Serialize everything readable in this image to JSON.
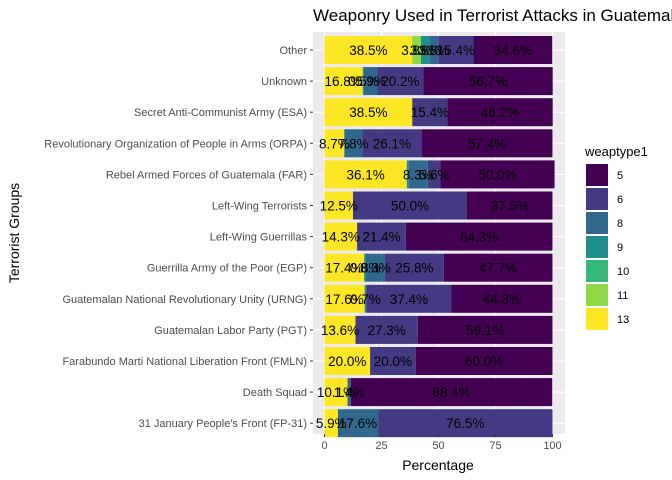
{
  "chart_data": {
    "type": "bar",
    "orientation": "horizontal",
    "stacked": true,
    "title": "Weaponry Used in Terrorist Attacks in Guatemala",
    "xlabel": "Percentage",
    "ylabel": "Terrorist Groups",
    "xlim": [
      0,
      100
    ],
    "xticks": [
      "0",
      "25",
      "50",
      "75",
      "100"
    ],
    "legend": {
      "title": "weaptype1",
      "position": "right",
      "entries": [
        {
          "key": "5",
          "color": "#440154"
        },
        {
          "key": "6",
          "color": "#443A83"
        },
        {
          "key": "8",
          "color": "#31688E"
        },
        {
          "key": "9",
          "color": "#21908C"
        },
        {
          "key": "10",
          "color": "#35B779"
        },
        {
          "key": "11",
          "color": "#8FD744"
        },
        {
          "key": "13",
          "color": "#FDE725"
        }
      ]
    },
    "stack_order": [
      "13",
      "11",
      "10",
      "9",
      "8",
      "6",
      "5"
    ],
    "groups": [
      {
        "name": "Other",
        "segments": [
          {
            "key": "13",
            "value": 38.5,
            "label": "38.5%"
          },
          {
            "key": "11",
            "value": 3.8,
            "label": "3.8%"
          },
          {
            "key": "9",
            "value": 3.8,
            "label": "3.8%"
          },
          {
            "key": "8",
            "value": 3.8,
            "label": "3.8%"
          },
          {
            "key": "6",
            "value": 15.4,
            "label": "15.4%"
          },
          {
            "key": "5",
            "value": 34.6,
            "label": "34.6%"
          }
        ]
      },
      {
        "name": "Unknown",
        "segments": [
          {
            "key": "13",
            "value": 16.8,
            "label": "16.8%"
          },
          {
            "key": "9",
            "value": 0.5,
            "label": "0.5%"
          },
          {
            "key": "8",
            "value": 5.9,
            "label": "5.9%"
          },
          {
            "key": "6",
            "value": 20.2,
            "label": "20.2%"
          },
          {
            "key": "5",
            "value": 56.7,
            "label": "56.7%"
          }
        ]
      },
      {
        "name": "Secret Anti-Communist Army (ESA)",
        "segments": [
          {
            "key": "13",
            "value": 38.5,
            "label": "38.5%"
          },
          {
            "key": "6",
            "value": 15.4,
            "label": "15.4%"
          },
          {
            "key": "5",
            "value": 46.2,
            "label": "46.2%"
          }
        ]
      },
      {
        "name": "Revolutionary Organization of People in Arms (ORPA)",
        "segments": [
          {
            "key": "13",
            "value": 8.7,
            "label": "8.7%"
          },
          {
            "key": "8",
            "value": 7.8,
            "label": "7.8%"
          },
          {
            "key": "6",
            "value": 26.1,
            "label": "26.1%"
          },
          {
            "key": "5",
            "value": 57.4,
            "label": "57.4%"
          }
        ]
      },
      {
        "name": "Rebel Armed Forces of Guatemala (FAR)",
        "segments": [
          {
            "key": "13",
            "value": 36.1,
            "label": "36.1%"
          },
          {
            "key": "9",
            "value": 0.9,
            "label": ""
          },
          {
            "key": "8",
            "value": 8.3,
            "label": "8.3%"
          },
          {
            "key": "6",
            "value": 5.6,
            "label": "5.6%"
          },
          {
            "key": "5",
            "value": 50.0,
            "label": "50.0%"
          }
        ]
      },
      {
        "name": "Left-Wing Terrorists",
        "segments": [
          {
            "key": "13",
            "value": 12.5,
            "label": "12.5%"
          },
          {
            "key": "6",
            "value": 50.0,
            "label": "50.0%"
          },
          {
            "key": "5",
            "value": 37.5,
            "label": "37.5%"
          }
        ]
      },
      {
        "name": "Left-Wing Guerrillas",
        "segments": [
          {
            "key": "13",
            "value": 14.3,
            "label": "14.3%"
          },
          {
            "key": "6",
            "value": 21.4,
            "label": "21.4%"
          },
          {
            "key": "5",
            "value": 64.3,
            "label": "64.3%"
          }
        ]
      },
      {
        "name": "Guerrilla Army of the Poor (EGP)",
        "segments": [
          {
            "key": "13",
            "value": 17.4,
            "label": "17.4%"
          },
          {
            "key": "9",
            "value": 0.8,
            "label": "0.8%"
          },
          {
            "key": "8",
            "value": 8.3,
            "label": "8.3%"
          },
          {
            "key": "6",
            "value": 25.8,
            "label": "25.8%"
          },
          {
            "key": "5",
            "value": 47.7,
            "label": "47.7%"
          }
        ]
      },
      {
        "name": "Guatemalan National Revolutionary Unity (URNG)",
        "segments": [
          {
            "key": "13",
            "value": 17.6,
            "label": "17.6%"
          },
          {
            "key": "9",
            "value": 0.7,
            "label": "0.7%"
          },
          {
            "key": "6",
            "value": 37.4,
            "label": "37.4%"
          },
          {
            "key": "5",
            "value": 44.3,
            "label": "44.3%"
          }
        ]
      },
      {
        "name": "Guatemalan Labor Party (PGT)",
        "segments": [
          {
            "key": "13",
            "value": 13.6,
            "label": "13.6%"
          },
          {
            "key": "6",
            "value": 27.3,
            "label": "27.3%"
          },
          {
            "key": "5",
            "value": 59.1,
            "label": "59.1%"
          }
        ]
      },
      {
        "name": "Farabundo Marti National Liberation Front (FMLN)",
        "segments": [
          {
            "key": "13",
            "value": 20.0,
            "label": "20.0%"
          },
          {
            "key": "6",
            "value": 20.0,
            "label": "20.0%"
          },
          {
            "key": "5",
            "value": 60.0,
            "label": "60.0%"
          }
        ]
      },
      {
        "name": "Death Squad",
        "segments": [
          {
            "key": "13",
            "value": 10.1,
            "label": "10.1%"
          },
          {
            "key": "8",
            "value": 1.4,
            "label": "1.4%"
          },
          {
            "key": "5",
            "value": 88.4,
            "label": "88.4%"
          }
        ]
      },
      {
        "name": "31 January People's Front (FP-31)",
        "segments": [
          {
            "key": "13",
            "value": 5.9,
            "label": "5.9%"
          },
          {
            "key": "8",
            "value": 17.6,
            "label": "17.6%"
          },
          {
            "key": "6",
            "value": 76.5,
            "label": "76.5%"
          }
        ]
      }
    ]
  }
}
